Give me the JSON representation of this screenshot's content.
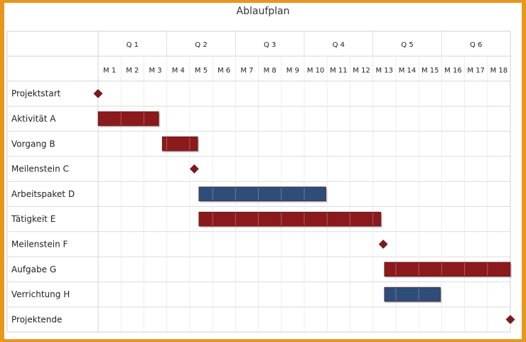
{
  "chart_data": {
    "type": "gantt",
    "title": "Ablaufplan",
    "quarters": [
      "Q 1",
      "Q 2",
      "Q 3",
      "Q 4",
      "Q 5",
      "Q 6"
    ],
    "months": [
      "M 1",
      "M 2",
      "M 3",
      "M 4",
      "M 5",
      "M 6",
      "M 7",
      "M 8",
      "M 9",
      "M 10",
      "M 11",
      "M 12",
      "M 13",
      "M 14",
      "M 15",
      "M 16",
      "M 17",
      "M 18"
    ],
    "tasks": [
      {
        "name": "Projektstart",
        "kind": "milestone",
        "start": 0.0,
        "color": "#7b1a1e"
      },
      {
        "name": "Aktivität A",
        "kind": "bar",
        "start": 0.0,
        "end": 2.65,
        "color": "#8b1a1c"
      },
      {
        "name": "Vorgang B",
        "kind": "bar",
        "start": 2.8,
        "end": 4.35,
        "color": "#8b1a1c"
      },
      {
        "name": "Meilenstein C",
        "kind": "milestone",
        "start": 4.2,
        "color": "#7b1a1e"
      },
      {
        "name": "Arbeitspaket D",
        "kind": "bar",
        "start": 4.4,
        "end": 9.95,
        "color": "#2e4d78"
      },
      {
        "name": "Tätigkeit E",
        "kind": "bar",
        "start": 4.4,
        "end": 12.35,
        "color": "#8b1a1c"
      },
      {
        "name": "Meilenstein F",
        "kind": "milestone",
        "start": 12.45,
        "color": "#7b1a1e"
      },
      {
        "name": "Aufgabe G",
        "kind": "bar",
        "start": 12.5,
        "end": 18.0,
        "color": "#8b1a1c"
      },
      {
        "name": "Verrichtung H",
        "kind": "bar",
        "start": 12.5,
        "end": 14.95,
        "color": "#2e4d78"
      },
      {
        "name": "Projektende",
        "kind": "milestone",
        "start": 18.0,
        "color": "#7b1a1e"
      }
    ],
    "grid": true
  }
}
